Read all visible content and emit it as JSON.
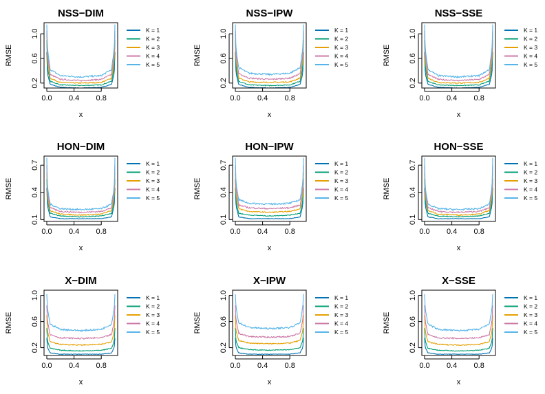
{
  "colors": [
    "#0072B2",
    "#009E73",
    "#E69F00",
    "#CC79A7",
    "#56B4E9"
  ],
  "legend": [
    "K = 1",
    "K = 2",
    "K = 3",
    "K = 4",
    "K = 5"
  ],
  "chart_data": [
    {
      "type": "line",
      "title": "NSS−DIM",
      "xlabel": "x",
      "ylabel": "RMSE",
      "xlim": [
        0,
        1
      ],
      "ylim": [
        0.12,
        1.18
      ],
      "xticks": [
        "0.0",
        "0.4",
        "0.8"
      ],
      "yticks": [
        "0.2",
        "0.6",
        "1.0"
      ],
      "x": [
        0,
        0.01,
        0.05,
        0.2,
        0.5,
        0.8,
        0.95,
        0.99,
        1
      ],
      "series": [
        {
          "name": "K = 1",
          "values": [
            0.7,
            0.35,
            0.18,
            0.13,
            0.12,
            0.13,
            0.18,
            0.35,
            0.7
          ]
        },
        {
          "name": "K = 2",
          "values": [
            0.9,
            0.45,
            0.23,
            0.17,
            0.16,
            0.17,
            0.23,
            0.45,
            0.9
          ]
        },
        {
          "name": "K = 3",
          "values": [
            1.0,
            0.55,
            0.28,
            0.21,
            0.2,
            0.21,
            0.28,
            0.55,
            1.0
          ]
        },
        {
          "name": "K = 4",
          "values": [
            1.05,
            0.65,
            0.34,
            0.26,
            0.24,
            0.26,
            0.34,
            0.65,
            1.05
          ]
        },
        {
          "name": "K = 5",
          "values": [
            1.15,
            0.75,
            0.42,
            0.32,
            0.3,
            0.32,
            0.42,
            0.75,
            1.15
          ]
        }
      ]
    },
    {
      "type": "line",
      "title": "NSS−IPW",
      "xlabel": "x",
      "ylabel": "RMSE",
      "xlim": [
        0,
        1
      ],
      "ylim": [
        0.12,
        1.18
      ],
      "xticks": [
        "0.0",
        "0.4",
        "0.8"
      ],
      "yticks": [
        "0.2",
        "0.6",
        "1.0"
      ],
      "x": [
        0,
        0.01,
        0.05,
        0.2,
        0.5,
        0.8,
        0.95,
        0.99,
        1
      ],
      "series": [
        {
          "name": "K = 1",
          "values": [
            0.7,
            0.35,
            0.18,
            0.13,
            0.12,
            0.13,
            0.18,
            0.35,
            0.7
          ]
        },
        {
          "name": "K = 2",
          "values": [
            0.9,
            0.45,
            0.23,
            0.17,
            0.16,
            0.17,
            0.23,
            0.45,
            0.9
          ]
        },
        {
          "name": "K = 3",
          "values": [
            1.0,
            0.55,
            0.28,
            0.22,
            0.21,
            0.22,
            0.28,
            0.55,
            1.0
          ]
        },
        {
          "name": "K = 4",
          "values": [
            1.05,
            0.65,
            0.35,
            0.28,
            0.26,
            0.28,
            0.35,
            0.65,
            1.05
          ]
        },
        {
          "name": "K = 5",
          "values": [
            1.15,
            0.75,
            0.45,
            0.36,
            0.34,
            0.36,
            0.45,
            0.75,
            1.15
          ]
        }
      ]
    },
    {
      "type": "line",
      "title": "NSS−SSE",
      "xlabel": "x",
      "ylabel": "RMSE",
      "xlim": [
        0,
        1
      ],
      "ylim": [
        0.12,
        1.18
      ],
      "xticks": [
        "0.0",
        "0.4",
        "0.8"
      ],
      "yticks": [
        "0.2",
        "0.6",
        "1.0"
      ],
      "x": [
        0,
        0.01,
        0.05,
        0.2,
        0.5,
        0.8,
        0.95,
        0.99,
        1
      ],
      "series": [
        {
          "name": "K = 1",
          "values": [
            0.7,
            0.35,
            0.18,
            0.13,
            0.12,
            0.13,
            0.18,
            0.35,
            0.7
          ]
        },
        {
          "name": "K = 2",
          "values": [
            0.9,
            0.45,
            0.23,
            0.17,
            0.16,
            0.17,
            0.23,
            0.45,
            0.9
          ]
        },
        {
          "name": "K = 3",
          "values": [
            1.0,
            0.55,
            0.28,
            0.21,
            0.2,
            0.21,
            0.28,
            0.55,
            1.0
          ]
        },
        {
          "name": "K = 4",
          "values": [
            1.05,
            0.65,
            0.34,
            0.26,
            0.24,
            0.26,
            0.34,
            0.65,
            1.05
          ]
        },
        {
          "name": "K = 5",
          "values": [
            1.15,
            0.75,
            0.42,
            0.32,
            0.3,
            0.32,
            0.42,
            0.75,
            1.15
          ]
        }
      ]
    },
    {
      "type": "line",
      "title": "HON−DIM",
      "xlabel": "x",
      "ylabel": "RMSE",
      "xlim": [
        0,
        1
      ],
      "ylim": [
        0.08,
        0.8
      ],
      "xticks": [
        "0.0",
        "0.4",
        "0.8"
      ],
      "yticks": [
        "0.1",
        "0.4",
        "0.7"
      ],
      "x": [
        0,
        0.01,
        0.05,
        0.2,
        0.5,
        0.8,
        0.95,
        0.99,
        1
      ],
      "series": [
        {
          "name": "K = 1",
          "values": [
            0.45,
            0.25,
            0.13,
            0.11,
            0.11,
            0.11,
            0.13,
            0.25,
            0.45
          ]
        },
        {
          "name": "K = 2",
          "values": [
            0.55,
            0.3,
            0.17,
            0.14,
            0.13,
            0.14,
            0.17,
            0.3,
            0.55
          ]
        },
        {
          "name": "K = 3",
          "values": [
            0.62,
            0.35,
            0.2,
            0.16,
            0.15,
            0.16,
            0.2,
            0.35,
            0.62
          ]
        },
        {
          "name": "K = 4",
          "values": [
            0.7,
            0.4,
            0.23,
            0.19,
            0.18,
            0.19,
            0.23,
            0.4,
            0.7
          ]
        },
        {
          "name": "K = 5",
          "values": [
            0.78,
            0.45,
            0.27,
            0.22,
            0.21,
            0.22,
            0.27,
            0.45,
            0.78
          ]
        }
      ]
    },
    {
      "type": "line",
      "title": "HON−IPW",
      "xlabel": "x",
      "ylabel": "RMSE",
      "xlim": [
        0,
        1
      ],
      "ylim": [
        0.08,
        0.8
      ],
      "xticks": [
        "0.0",
        "0.4",
        "0.8"
      ],
      "yticks": [
        "0.1",
        "0.4",
        "0.7"
      ],
      "x": [
        0,
        0.01,
        0.05,
        0.2,
        0.5,
        0.8,
        0.95,
        0.99,
        1
      ],
      "series": [
        {
          "name": "K = 1",
          "values": [
            0.45,
            0.25,
            0.13,
            0.11,
            0.11,
            0.11,
            0.13,
            0.25,
            0.45
          ]
        },
        {
          "name": "K = 2",
          "values": [
            0.55,
            0.3,
            0.17,
            0.15,
            0.14,
            0.15,
            0.17,
            0.3,
            0.55
          ]
        },
        {
          "name": "K = 3",
          "values": [
            0.62,
            0.37,
            0.22,
            0.19,
            0.18,
            0.19,
            0.22,
            0.37,
            0.62
          ]
        },
        {
          "name": "K = 4",
          "values": [
            0.7,
            0.43,
            0.26,
            0.23,
            0.22,
            0.23,
            0.26,
            0.43,
            0.7
          ]
        },
        {
          "name": "K = 5",
          "values": [
            0.78,
            0.5,
            0.32,
            0.28,
            0.27,
            0.28,
            0.32,
            0.5,
            0.78
          ]
        }
      ]
    },
    {
      "type": "line",
      "title": "HON−SSE",
      "xlabel": "x",
      "ylabel": "RMSE",
      "xlim": [
        0,
        1
      ],
      "ylim": [
        0.08,
        0.8
      ],
      "xticks": [
        "0.0",
        "0.4",
        "0.8"
      ],
      "yticks": [
        "0.1",
        "0.4",
        "0.7"
      ],
      "x": [
        0,
        0.01,
        0.05,
        0.2,
        0.5,
        0.8,
        0.95,
        0.99,
        1
      ],
      "series": [
        {
          "name": "K = 1",
          "values": [
            0.45,
            0.25,
            0.13,
            0.11,
            0.11,
            0.11,
            0.13,
            0.25,
            0.45
          ]
        },
        {
          "name": "K = 2",
          "values": [
            0.55,
            0.3,
            0.17,
            0.14,
            0.13,
            0.14,
            0.17,
            0.3,
            0.55
          ]
        },
        {
          "name": "K = 3",
          "values": [
            0.62,
            0.35,
            0.2,
            0.16,
            0.15,
            0.16,
            0.2,
            0.35,
            0.62
          ]
        },
        {
          "name": "K = 4",
          "values": [
            0.7,
            0.4,
            0.23,
            0.19,
            0.18,
            0.19,
            0.23,
            0.4,
            0.7
          ]
        },
        {
          "name": "K = 5",
          "values": [
            0.78,
            0.45,
            0.27,
            0.22,
            0.21,
            0.22,
            0.27,
            0.45,
            0.78
          ]
        }
      ]
    },
    {
      "type": "line",
      "title": "X−DIM",
      "xlabel": "x",
      "ylabel": "RMSE",
      "xlim": [
        0,
        1
      ],
      "ylim": [
        0.08,
        1.08
      ],
      "xticks": [
        "0.0",
        "0.4",
        "0.8"
      ],
      "yticks": [
        "0.2",
        "0.6",
        "1.0"
      ],
      "x": [
        0,
        0.01,
        0.05,
        0.2,
        0.5,
        0.8,
        0.95,
        0.99,
        1
      ],
      "series": [
        {
          "name": "K = 1",
          "values": [
            0.35,
            0.2,
            0.12,
            0.1,
            0.1,
            0.1,
            0.12,
            0.2,
            0.35
          ]
        },
        {
          "name": "K = 2",
          "values": [
            0.5,
            0.3,
            0.19,
            0.16,
            0.15,
            0.16,
            0.19,
            0.3,
            0.5
          ]
        },
        {
          "name": "K = 3",
          "values": [
            0.7,
            0.45,
            0.29,
            0.25,
            0.24,
            0.25,
            0.29,
            0.45,
            0.7
          ]
        },
        {
          "name": "K = 4",
          "values": [
            0.85,
            0.6,
            0.4,
            0.35,
            0.34,
            0.35,
            0.4,
            0.6,
            0.85
          ]
        },
        {
          "name": "K = 5",
          "values": [
            1.02,
            0.8,
            0.56,
            0.48,
            0.46,
            0.48,
            0.56,
            0.8,
            1.02
          ]
        }
      ]
    },
    {
      "type": "line",
      "title": "X−IPW",
      "xlabel": "x",
      "ylabel": "RMSE",
      "xlim": [
        0,
        1
      ],
      "ylim": [
        0.08,
        1.08
      ],
      "xticks": [
        "0.0",
        "0.4",
        "0.8"
      ],
      "yticks": [
        "0.2",
        "0.6",
        "1.0"
      ],
      "x": [
        0,
        0.01,
        0.05,
        0.2,
        0.5,
        0.8,
        0.95,
        0.99,
        1
      ],
      "series": [
        {
          "name": "K = 1",
          "values": [
            0.35,
            0.2,
            0.12,
            0.1,
            0.1,
            0.1,
            0.12,
            0.2,
            0.35
          ]
        },
        {
          "name": "K = 2",
          "values": [
            0.5,
            0.3,
            0.2,
            0.17,
            0.16,
            0.17,
            0.2,
            0.3,
            0.5
          ]
        },
        {
          "name": "K = 3",
          "values": [
            0.7,
            0.45,
            0.31,
            0.27,
            0.26,
            0.27,
            0.31,
            0.45,
            0.7
          ]
        },
        {
          "name": "K = 4",
          "values": [
            0.85,
            0.62,
            0.42,
            0.37,
            0.36,
            0.37,
            0.42,
            0.62,
            0.85
          ]
        },
        {
          "name": "K = 5",
          "values": [
            1.02,
            0.82,
            0.58,
            0.51,
            0.49,
            0.51,
            0.58,
            0.82,
            1.02
          ]
        }
      ]
    },
    {
      "type": "line",
      "title": "X−SSE",
      "xlabel": "x",
      "ylabel": "RMSE",
      "xlim": [
        0,
        1
      ],
      "ylim": [
        0.08,
        1.08
      ],
      "xticks": [
        "0.0",
        "0.4",
        "0.8"
      ],
      "yticks": [
        "0.2",
        "0.6",
        "1.0"
      ],
      "x": [
        0,
        0.01,
        0.05,
        0.2,
        0.5,
        0.8,
        0.95,
        0.99,
        1
      ],
      "series": [
        {
          "name": "K = 1",
          "values": [
            0.35,
            0.2,
            0.12,
            0.1,
            0.1,
            0.1,
            0.12,
            0.2,
            0.35
          ]
        },
        {
          "name": "K = 2",
          "values": [
            0.5,
            0.3,
            0.19,
            0.16,
            0.15,
            0.16,
            0.19,
            0.3,
            0.5
          ]
        },
        {
          "name": "K = 3",
          "values": [
            0.7,
            0.45,
            0.29,
            0.25,
            0.24,
            0.25,
            0.29,
            0.45,
            0.7
          ]
        },
        {
          "name": "K = 4",
          "values": [
            0.85,
            0.6,
            0.4,
            0.35,
            0.34,
            0.35,
            0.4,
            0.6,
            0.85
          ]
        },
        {
          "name": "K = 5",
          "values": [
            1.02,
            0.8,
            0.56,
            0.48,
            0.46,
            0.48,
            0.56,
            0.8,
            1.02
          ]
        }
      ]
    }
  ]
}
